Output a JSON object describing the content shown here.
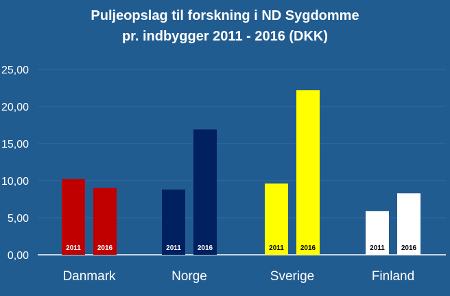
{
  "chart_data": {
    "type": "bar",
    "title_lines": [
      "Puljeopslag til forskning i ND Sygdomme",
      "pr. indbygger 2011 - 2016 (DKK)"
    ],
    "categories": [
      "Danmark",
      "Norge",
      "Sverige",
      "Finland"
    ],
    "series": [
      {
        "name": "2011",
        "values": [
          10.2,
          8.8,
          9.6,
          5.9
        ]
      },
      {
        "name": "2016",
        "values": [
          9.0,
          16.9,
          22.2,
          8.3
        ]
      }
    ],
    "category_colors": [
      "#c00000",
      "#002060",
      "#ffff00",
      "#ffffff"
    ],
    "inbar_label_colors": [
      "#ffffff",
      "#ffffff",
      "#000000",
      "#000000"
    ],
    "ylim": [
      0,
      25
    ],
    "yticks": [
      0,
      5,
      10,
      15,
      20,
      25
    ],
    "ytick_labels": [
      "0,00",
      "5,00",
      "10,00",
      "15,00",
      "20,00",
      "25,00"
    ],
    "grid": true,
    "background": "#215c91",
    "gridline_color": "#2f6aa3",
    "axis_line_color": "#ffffff"
  }
}
